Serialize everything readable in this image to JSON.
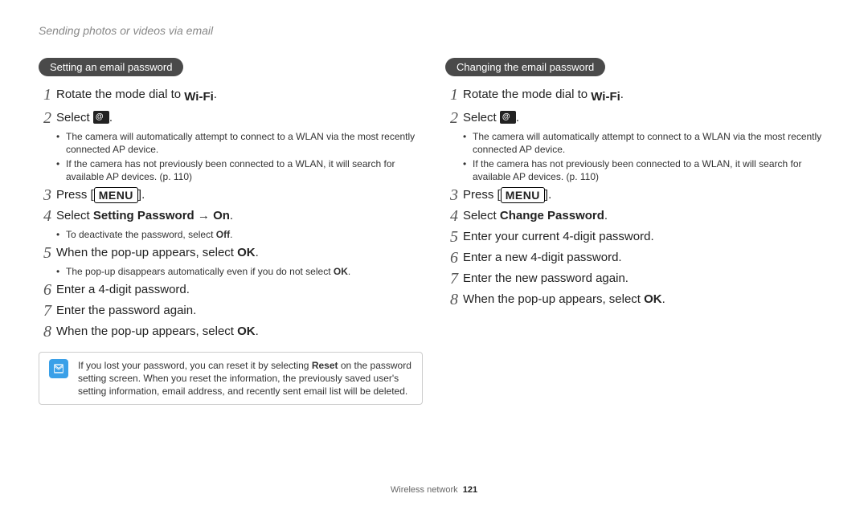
{
  "breadcrumb": "Sending photos or videos via email",
  "left": {
    "heading": "Setting an email password",
    "steps": [
      {
        "n": "1",
        "text_before": "Rotate the mode dial to ",
        "icon": "wifi",
        "text_after": "."
      },
      {
        "n": "2",
        "text_before": "Select ",
        "icon": "email",
        "text_after": ".",
        "subs": [
          "The camera will automatically attempt to connect to a WLAN via the most recently connected AP device.",
          "If the camera has not previously been connected to a WLAN, it will search for available AP devices. (p. 110)"
        ]
      },
      {
        "n": "3",
        "text_before": "Press [",
        "icon": "menu",
        "text_after": "]."
      },
      {
        "n": "4",
        "html": "Select <b>Setting Password</b> <span class='arrow'>→</span> <b>On</b>.",
        "subs": [
          "To deactivate the password, select <b>Off</b>."
        ]
      },
      {
        "n": "5",
        "html": "When the pop-up appears, select <b>OK</b>.",
        "subs": [
          "The pop-up disappears automatically even if you do not select <b>OK</b>."
        ]
      },
      {
        "n": "6",
        "text": "Enter a 4-digit password."
      },
      {
        "n": "7",
        "text": "Enter the password again."
      },
      {
        "n": "8",
        "html": "When the pop-up appears, select <b>OK</b>."
      }
    ],
    "info": "If you lost your password, you can reset it by selecting <b>Reset</b> on the password setting screen. When you reset the information, the previously saved user's setting information, email address, and recently sent email list will be deleted."
  },
  "right": {
    "heading": "Changing the email password",
    "steps": [
      {
        "n": "1",
        "text_before": "Rotate the mode dial to ",
        "icon": "wifi",
        "text_after": "."
      },
      {
        "n": "2",
        "text_before": "Select ",
        "icon": "email",
        "text_after": ".",
        "subs": [
          "The camera will automatically attempt to connect to a WLAN via the most recently connected AP device.",
          "If the camera has not previously been connected to a WLAN, it will search for available AP devices. (p. 110)"
        ]
      },
      {
        "n": "3",
        "text_before": "Press [",
        "icon": "menu",
        "text_after": "]."
      },
      {
        "n": "4",
        "html": "Select <b>Change Password</b>."
      },
      {
        "n": "5",
        "text": "Enter your current 4-digit password."
      },
      {
        "n": "6",
        "text": "Enter a new 4-digit password."
      },
      {
        "n": "7",
        "text": "Enter the new password again."
      },
      {
        "n": "8",
        "html": "When the pop-up appears, select <b>OK</b>."
      }
    ]
  },
  "footer_label": "Wireless network",
  "footer_page": "121",
  "colors": {
    "pill_bg": "#4a4a4a",
    "info_icon_bg": "#3aa0e8",
    "breadcrumb": "#888888"
  }
}
